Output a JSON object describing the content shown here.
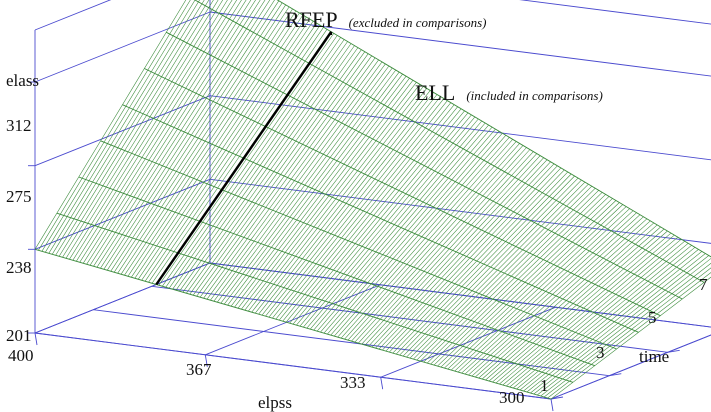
{
  "chart_data": {
    "type": "surface",
    "title": "",
    "axes": {
      "elpss": {
        "label": "elpss",
        "range": [
          400,
          300
        ],
        "ticks": [
          "400",
          "367",
          "333",
          "300"
        ]
      },
      "time": {
        "label": "time",
        "range": [
          1,
          7
        ],
        "ticks": [
          "1",
          "3",
          "5",
          "7"
        ]
      },
      "elass": {
        "label": "elass",
        "range": [
          201,
          335
        ],
        "ticks": [
          "201",
          "238",
          "275",
          "312"
        ]
      }
    },
    "surface": {
      "color": "#3a8a3a",
      "corners": [
        {
          "elpss": 400,
          "time": 1,
          "elass": 238
        },
        {
          "elpss": 300,
          "time": 1,
          "elass": 201
        },
        {
          "elpss": 400,
          "time": 7,
          "elass": 335
        },
        {
          "elpss": 300,
          "time": 7,
          "elass": 229
        }
      ]
    },
    "annotations": [
      {
        "main": "RFEP",
        "sub": "(excluded in comparisons)"
      },
      {
        "main": "ELL",
        "sub": "(included in comparisons)"
      }
    ],
    "boundary_line": {
      "color": "#000000"
    },
    "grid_color": "#4b4bcf"
  }
}
